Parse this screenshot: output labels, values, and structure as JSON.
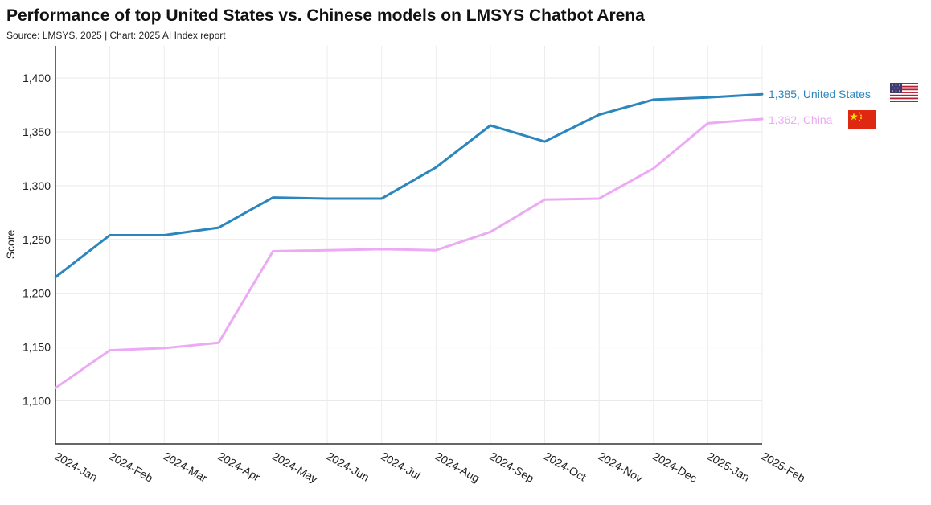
{
  "header": {
    "title": "Performance of top United States vs. Chinese models on LMSYS Chatbot Arena",
    "subtitle": "Source: LMSYS, 2025 | Chart: 2025 AI Index report"
  },
  "chart_data": {
    "type": "line",
    "title": "Performance of top United States vs. Chinese models on LMSYS Chatbot Arena",
    "xlabel": "",
    "ylabel": "Score",
    "ylim": [
      1060,
      1430
    ],
    "yticks": [
      1100,
      1150,
      1200,
      1250,
      1300,
      1350,
      1400
    ],
    "ytick_labels": [
      "1,100",
      "1,150",
      "1,200",
      "1,250",
      "1,300",
      "1,350",
      "1,400"
    ],
    "grid": true,
    "categories": [
      "2024-Jan",
      "2024-Feb",
      "2024-Mar",
      "2024-Apr",
      "2024-May",
      "2024-Jun",
      "2024-Jul",
      "2024-Aug",
      "2024-Sep",
      "2024-Oct",
      "2024-Nov",
      "2024-Dec",
      "2025-Jan",
      "2025-Feb"
    ],
    "series": [
      {
        "name": "United States",
        "color": "#2a86bd",
        "values": [
          1215,
          1254,
          1254,
          1261,
          1289,
          1288,
          1288,
          1317,
          1356,
          1341,
          1366,
          1380,
          1382,
          1385
        ],
        "end_label": "1,385, United States",
        "flag": "us-flag"
      },
      {
        "name": "China",
        "color": "#ecaaf4",
        "values": [
          1112,
          1147,
          1149,
          1154,
          1239,
          1240,
          1241,
          1240,
          1257,
          1287,
          1288,
          1316,
          1358,
          1362
        ],
        "end_label": "1,362, China",
        "flag": "china-flag"
      }
    ]
  }
}
